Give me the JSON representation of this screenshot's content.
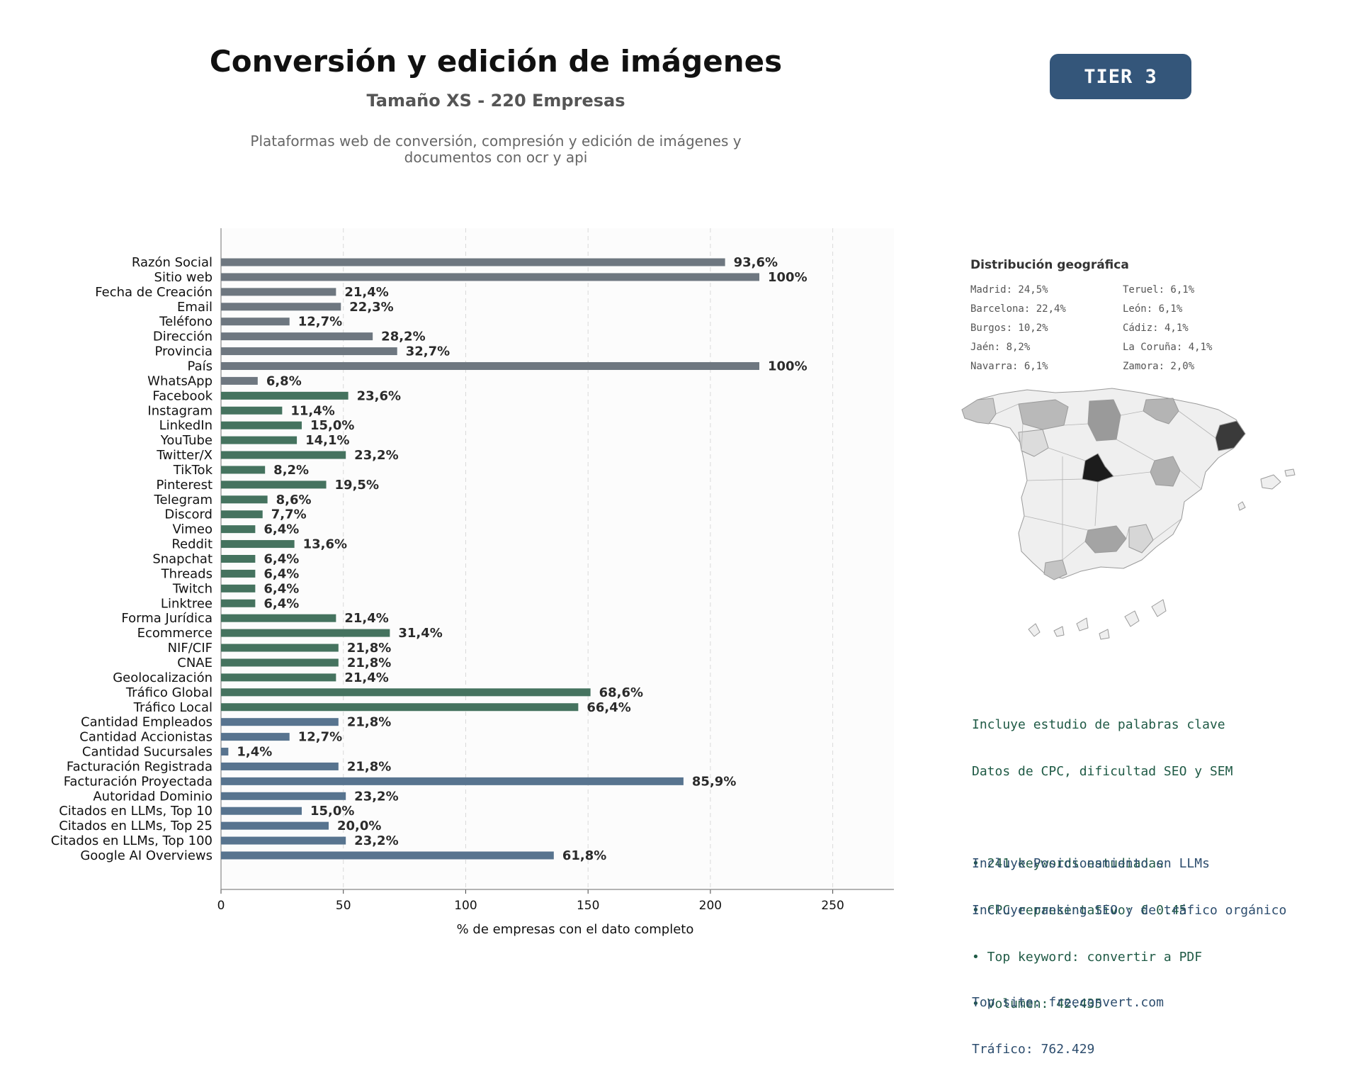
{
  "header": {
    "title": "Conversión y edición de imágenes",
    "subtitle": "Tamaño XS - 220 Empresas",
    "description_line1": "Plataformas web de conversión, compresión y edición de imágenes y",
    "description_line2": "documentos con ocr y api",
    "tier": "TIER 3"
  },
  "colors": {
    "gray": "#6e7780",
    "green": "#45735f",
    "blue": "#58748f",
    "label": "#2b2b2b",
    "plot_bg": "#fcfcfc"
  },
  "chart_data": {
    "type": "bar",
    "orientation": "horizontal",
    "xlabel": "% de empresas con el dato completo",
    "xlim": [
      0,
      275
    ],
    "xticks": [
      0,
      50,
      100,
      150,
      200,
      250
    ],
    "grid": true,
    "categories": [
      "Razón Social",
      "Sitio web",
      "Fecha de Creación",
      "Email",
      "Teléfono",
      "Dirección",
      "Provincia",
      "País",
      "WhatsApp",
      "Facebook",
      "Instagram",
      "LinkedIn",
      "YouTube",
      "Twitter/X",
      "TikTok",
      "Pinterest",
      "Telegram",
      "Discord",
      "Vimeo",
      "Reddit",
      "Snapchat",
      "Threads",
      "Twitch",
      "Linktree",
      "Forma Jurídica",
      "Ecommerce",
      "NIF/CIF",
      "CNAE",
      "Geolocalización",
      "Tráfico Global",
      "Tráfico Local",
      "Cantidad Empleados",
      "Cantidad Accionistas",
      "Cantidad Sucursales",
      "Facturación Registrada",
      "Facturación Proyectada",
      "Autoridad Dominio",
      "Citados en LLMs, Top 10",
      "Citados en LLMs, Top 25",
      "Citados en LLMs, Top 100",
      "Google AI Overviews"
    ],
    "values": [
      206,
      220,
      47,
      49,
      28,
      62,
      72,
      220,
      15,
      52,
      25,
      33,
      31,
      51,
      18,
      43,
      19,
      17,
      14,
      30,
      14,
      14,
      14,
      14,
      47,
      69,
      48,
      48,
      47,
      151,
      146,
      48,
      28,
      3,
      48,
      189,
      51,
      33,
      44,
      51,
      136
    ],
    "labels": [
      "93,6%",
      "100%",
      "21,4%",
      "22,3%",
      "12,7%",
      "28,2%",
      "32,7%",
      "100%",
      "6,8%",
      "23,6%",
      "11,4%",
      "15,0%",
      "14,1%",
      "23,2%",
      "8,2%",
      "19,5%",
      "8,6%",
      "7,7%",
      "6,4%",
      "13,6%",
      "6,4%",
      "6,4%",
      "6,4%",
      "6,4%",
      "21,4%",
      "31,4%",
      "21,8%",
      "21,8%",
      "21,4%",
      "68,6%",
      "66,4%",
      "21,8%",
      "12,7%",
      "1,4%",
      "21,8%",
      "85,9%",
      "23,2%",
      "15,0%",
      "20,0%",
      "23,2%",
      "61,8%"
    ],
    "groups": [
      "gray",
      "gray",
      "gray",
      "gray",
      "gray",
      "gray",
      "gray",
      "gray",
      "gray",
      "green",
      "green",
      "green",
      "green",
      "green",
      "green",
      "green",
      "green",
      "green",
      "green",
      "green",
      "green",
      "green",
      "green",
      "green",
      "green",
      "green",
      "green",
      "green",
      "green",
      "green",
      "green",
      "blue",
      "blue",
      "blue",
      "blue",
      "blue",
      "blue",
      "blue",
      "blue",
      "blue",
      "blue"
    ]
  },
  "geo": {
    "title": "Distribución geográfica",
    "items": [
      "Madrid: 24,5%",
      "Teruel: 6,1%",
      "Barcelona: 22,4%",
      "León: 6,1%",
      "Burgos: 10,2%",
      "Cádiz: 4,1%",
      "Jaén: 8,2%",
      "La Coruña: 4,1%",
      "Navarra: 6,1%",
      "Zamora: 2,0%"
    ]
  },
  "keywords_box": {
    "line1": "Incluye estudio de palabras clave",
    "line2": "Datos de CPC, dificultad SEO y SEM",
    "bullet1": "• 241 keywords estudiadas",
    "bullet2": "• CPC representativo: € 0.45",
    "bullet3": "• Top keyword: convertir a PDF",
    "bullet4": "• Volumen: 42.435"
  },
  "llm_box": {
    "line1": "Incluye Posicionamiento en LLMs",
    "line2": "Incluye ranking SEO y de tráfico orgánico",
    "line3": "Top site: freeconvert.com",
    "line4": "Tráfico: 762.429"
  }
}
